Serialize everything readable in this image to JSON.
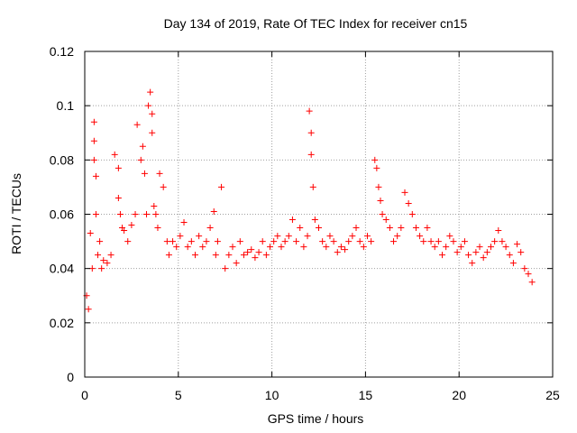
{
  "chart_data": {
    "type": "scatter",
    "title": "Day 134 of 2019, Rate Of TEC Index for receiver cn15",
    "xlabel": "GPS time / hours",
    "ylabel": "ROTI / TECUs",
    "xlim": [
      0,
      25
    ],
    "ylim": [
      0,
      0.12
    ],
    "xticks": [
      0,
      5,
      10,
      15,
      20,
      25
    ],
    "xtick_labels": [
      "0",
      "5",
      "10",
      "15",
      "20",
      "25"
    ],
    "yticks": [
      0,
      0.02,
      0.04,
      0.06,
      0.08,
      0.1,
      0.12
    ],
    "ytick_labels": [
      "0",
      "0.02",
      "0.04",
      "0.06",
      "0.08",
      "0.1",
      "0.12"
    ],
    "grid": true,
    "marker": "+",
    "color": "#ff0000",
    "series": [
      {
        "name": "ROTI",
        "x": [
          0.1,
          0.2,
          0.3,
          0.4,
          0.5,
          0.5,
          0.5,
          0.6,
          0.6,
          0.7,
          0.8,
          0.9,
          1.0,
          1.2,
          1.4,
          1.6,
          1.8,
          1.8,
          1.9,
          2.0,
          2.1,
          2.3,
          2.5,
          2.7,
          2.8,
          3.0,
          3.1,
          3.2,
          3.3,
          3.4,
          3.5,
          3.6,
          3.6,
          3.7,
          3.8,
          3.9,
          4.0,
          4.2,
          4.4,
          4.5,
          4.7,
          4.9,
          5.1,
          5.3,
          5.5,
          5.7,
          5.9,
          6.1,
          6.3,
          6.5,
          6.7,
          6.9,
          7.0,
          7.1,
          7.3,
          7.5,
          7.7,
          7.9,
          8.1,
          8.3,
          8.5,
          8.7,
          8.9,
          9.1,
          9.3,
          9.5,
          9.7,
          9.9,
          10.1,
          10.3,
          10.5,
          10.7,
          10.9,
          11.1,
          11.3,
          11.5,
          11.7,
          11.9,
          12.0,
          12.1,
          12.1,
          12.2,
          12.3,
          12.5,
          12.7,
          12.9,
          13.1,
          13.3,
          13.5,
          13.7,
          13.9,
          14.1,
          14.3,
          14.5,
          14.7,
          14.9,
          15.1,
          15.3,
          15.5,
          15.6,
          15.7,
          15.8,
          15.9,
          16.1,
          16.3,
          16.5,
          16.7,
          16.9,
          17.1,
          17.3,
          17.5,
          17.7,
          17.9,
          18.1,
          18.3,
          18.5,
          18.7,
          18.9,
          19.1,
          19.3,
          19.5,
          19.7,
          19.9,
          20.1,
          20.3,
          20.5,
          20.7,
          20.9,
          21.1,
          21.3,
          21.5,
          21.7,
          21.9,
          22.1,
          22.3,
          22.5,
          22.7,
          22.9,
          23.1,
          23.3,
          23.5,
          23.7,
          23.9
        ],
        "y": [
          0.03,
          0.025,
          0.053,
          0.04,
          0.087,
          0.094,
          0.08,
          0.074,
          0.06,
          0.045,
          0.05,
          0.04,
          0.043,
          0.042,
          0.045,
          0.082,
          0.077,
          0.066,
          0.06,
          0.055,
          0.054,
          0.05,
          0.056,
          0.06,
          0.093,
          0.08,
          0.085,
          0.075,
          0.06,
          0.1,
          0.105,
          0.097,
          0.09,
          0.063,
          0.06,
          0.055,
          0.075,
          0.07,
          0.05,
          0.045,
          0.05,
          0.048,
          0.052,
          0.057,
          0.048,
          0.05,
          0.045,
          0.052,
          0.048,
          0.05,
          0.055,
          0.061,
          0.045,
          0.05,
          0.07,
          0.04,
          0.045,
          0.048,
          0.042,
          0.05,
          0.045,
          0.046,
          0.047,
          0.044,
          0.046,
          0.05,
          0.045,
          0.048,
          0.05,
          0.052,
          0.048,
          0.05,
          0.052,
          0.058,
          0.05,
          0.055,
          0.048,
          0.052,
          0.098,
          0.09,
          0.082,
          0.07,
          0.058,
          0.055,
          0.05,
          0.048,
          0.052,
          0.05,
          0.046,
          0.048,
          0.047,
          0.05,
          0.052,
          0.055,
          0.05,
          0.048,
          0.052,
          0.05,
          0.08,
          0.077,
          0.07,
          0.065,
          0.06,
          0.058,
          0.055,
          0.05,
          0.052,
          0.055,
          0.068,
          0.064,
          0.06,
          0.055,
          0.052,
          0.05,
          0.055,
          0.05,
          0.048,
          0.05,
          0.045,
          0.048,
          0.052,
          0.05,
          0.046,
          0.048,
          0.05,
          0.045,
          0.042,
          0.046,
          0.048,
          0.044,
          0.046,
          0.048,
          0.05,
          0.054,
          0.05,
          0.048,
          0.045,
          0.042,
          0.049,
          0.046,
          0.04,
          0.038,
          0.035
        ]
      }
    ]
  }
}
